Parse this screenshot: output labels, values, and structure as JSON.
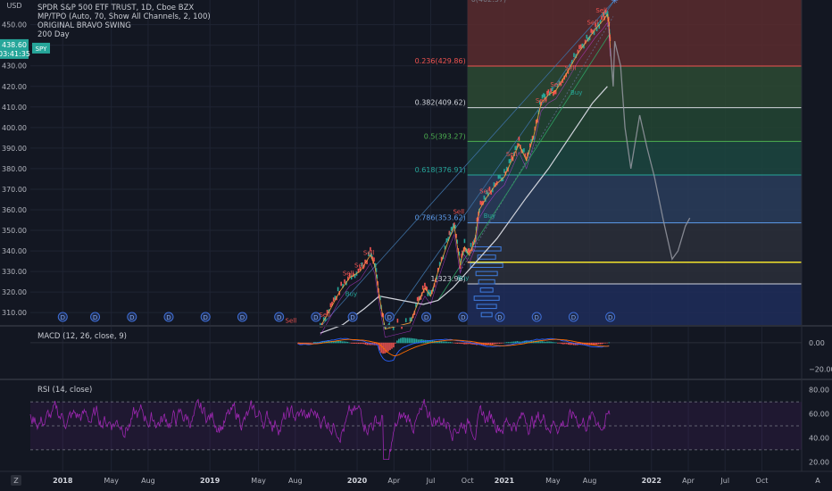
{
  "header": {
    "currency": "USD",
    "title": "SPDR S&P 500 ETF TRUST, 1D, Cboe BZX",
    "indicators": [
      "MP/TPO (Auto, 70, Show All Channels, 2, 100)",
      "ORIGINAL BRAVO SWING",
      "200 Day"
    ]
  },
  "last_price": {
    "price": "438.60",
    "countdown": "03:41:35",
    "symbol": "SPY",
    "value": 438.6
  },
  "colors": {
    "up": "#26a69a",
    "down": "#ef5350",
    "ma": "#d1d4dc",
    "rsi": "#9c27b0",
    "fib_gold": "#f2e22b",
    "background": "#131722"
  },
  "chart_data": [
    {
      "type": "line",
      "name": "price",
      "y_ticks": [
        "450.00",
        "440.00",
        "430.00",
        "420.00",
        "410.00",
        "400.00",
        "390.00",
        "380.00",
        "370.00",
        "360.00",
        "350.00",
        "340.00",
        "330.00",
        "320.00",
        "310.00"
      ],
      "ylim": [
        304,
        462
      ],
      "x_ticks": [
        {
          "label": "2018",
          "t": 2018.0
        },
        {
          "label": "May",
          "t": 2018.33
        },
        {
          "label": "Aug",
          "t": 2018.58
        },
        {
          "label": "2019",
          "t": 2019.0
        },
        {
          "label": "May",
          "t": 2019.33
        },
        {
          "label": "Aug",
          "t": 2019.58
        },
        {
          "label": "2020",
          "t": 2020.0
        },
        {
          "label": "Apr",
          "t": 2020.25
        },
        {
          "label": "Jul",
          "t": 2020.5
        },
        {
          "label": "Oct",
          "t": 2020.75
        },
        {
          "label": "2021",
          "t": 2021.0
        },
        {
          "label": "May",
          "t": 2021.33
        },
        {
          "label": "Aug",
          "t": 2021.58
        },
        {
          "label": "2022",
          "t": 2022.0
        },
        {
          "label": "Apr",
          "t": 2022.25
        },
        {
          "label": "Jul",
          "t": 2022.5
        },
        {
          "label": "Oct",
          "t": 2022.75
        }
      ],
      "price_series": [
        [
          2019.75,
          303
        ],
        [
          2019.82,
          312
        ],
        [
          2019.88,
          320
        ],
        [
          2019.95,
          327
        ],
        [
          2020.02,
          330
        ],
        [
          2020.09,
          338
        ],
        [
          2020.12,
          333
        ],
        [
          2020.15,
          318
        ],
        [
          2020.19,
          302
        ],
        [
          2020.36,
          305
        ],
        [
          2020.42,
          316
        ],
        [
          2020.46,
          322
        ],
        [
          2020.5,
          318
        ],
        [
          2020.55,
          330
        ],
        [
          2020.62,
          345
        ],
        [
          2020.66,
          352
        ],
        [
          2020.7,
          333
        ],
        [
          2020.73,
          342
        ],
        [
          2020.76,
          338
        ],
        [
          2020.8,
          345
        ],
        [
          2020.83,
          360
        ],
        [
          2020.88,
          366
        ],
        [
          2020.94,
          372
        ],
        [
          2021.0,
          376
        ],
        [
          2021.05,
          384
        ],
        [
          2021.1,
          392
        ],
        [
          2021.15,
          384
        ],
        [
          2021.2,
          396
        ],
        [
          2021.25,
          412
        ],
        [
          2021.3,
          416
        ],
        [
          2021.35,
          418
        ],
        [
          2021.42,
          426
        ],
        [
          2021.5,
          436
        ],
        [
          2021.56,
          442
        ],
        [
          2021.62,
          448
        ],
        [
          2021.67,
          452
        ],
        [
          2021.7,
          455
        ],
        [
          2021.71,
          451
        ],
        [
          2021.72,
          438.6
        ]
      ],
      "ma200": [
        [
          2019.75,
          300
        ],
        [
          2019.9,
          304
        ],
        [
          2020.05,
          312
        ],
        [
          2020.15,
          318
        ],
        [
          2020.3,
          316
        ],
        [
          2020.45,
          314
        ],
        [
          2020.55,
          316
        ],
        [
          2020.65,
          322
        ],
        [
          2020.75,
          330
        ],
        [
          2020.85,
          338
        ],
        [
          2020.95,
          346
        ],
        [
          2021.05,
          356
        ],
        [
          2021.15,
          366
        ],
        [
          2021.3,
          380
        ],
        [
          2021.45,
          396
        ],
        [
          2021.6,
          412
        ],
        [
          2021.7,
          420
        ]
      ],
      "projection": [
        [
          2021.72,
          438.6
        ],
        [
          2021.74,
          420
        ],
        [
          2021.75,
          442
        ],
        [
          2021.79,
          430
        ],
        [
          2021.82,
          400
        ],
        [
          2021.86,
          380
        ],
        [
          2021.92,
          406
        ],
        [
          2021.97,
          390
        ],
        [
          2022.02,
          376
        ],
        [
          2022.08,
          355
        ],
        [
          2022.14,
          336
        ],
        [
          2022.18,
          340
        ],
        [
          2022.23,
          352
        ],
        [
          2022.26,
          356
        ]
      ],
      "fibonacci": {
        "top": {
          "label": "0(462.37)",
          "value": 462.37
        },
        "levels": [
          {
            "label": "0.236(429.86)",
            "value": 429.86,
            "color": "#ef5350"
          },
          {
            "label": "0.382(409.62)",
            "value": 409.62,
            "color": "#d1d4dc"
          },
          {
            "label": "0.5(393.27)",
            "value": 393.27,
            "color": "#4caf50"
          },
          {
            "label": "0.618(376.91)",
            "value": 376.91,
            "color": "#26a69a"
          },
          {
            "label": "0.786(353.62)",
            "value": 353.62,
            "color": "#5d9cec"
          },
          {
            "label": "1(323.96)",
            "value": 323.96,
            "color": "#d1d4dc"
          }
        ],
        "gold_line": 334.5,
        "start_t": 2020.75
      },
      "signals": [
        {
          "text": "Sell",
          "t": 2020.08,
          "v": 338
        },
        {
          "text": "Sell",
          "t": 2020.02,
          "v": 332
        },
        {
          "text": "Sell",
          "t": 2019.94,
          "v": 328
        },
        {
          "text": "Buy",
          "t": 2019.96,
          "v": 318
        },
        {
          "text": "Sell",
          "t": 2019.78,
          "v": 308
        },
        {
          "text": "Sell",
          "t": 2019.55,
          "v": 305
        },
        {
          "text": "Sell",
          "t": 2020.69,
          "v": 358
        },
        {
          "text": "Buy",
          "t": 2020.72,
          "v": 326
        },
        {
          "text": "Sell",
          "t": 2020.87,
          "v": 368
        },
        {
          "text": "Sell",
          "t": 2021.05,
          "v": 386
        },
        {
          "text": "Sell",
          "t": 2021.25,
          "v": 412
        },
        {
          "text": "Sell",
          "t": 2021.35,
          "v": 420
        },
        {
          "text": "Sell",
          "t": 2021.45,
          "v": 428
        },
        {
          "text": "Buy",
          "t": 2021.49,
          "v": 416
        },
        {
          "text": "Sell",
          "t": 2021.66,
          "v": 456
        },
        {
          "text": "Sell",
          "t": 2021.6,
          "v": 450
        },
        {
          "text": "Buy",
          "t": 2020.9,
          "v": 356
        }
      ],
      "dividends": [
        2018.0,
        2018.22,
        2018.47,
        2018.72,
        2018.97,
        2019.22,
        2019.47,
        2019.72,
        2019.97,
        2020.22,
        2020.47,
        2020.72,
        2020.97,
        2021.22,
        2021.47,
        2021.72
      ],
      "dividend_marker": "D"
    },
    {
      "type": "line",
      "name": "MACD",
      "title": "MACD (12, 26, close, 9)",
      "y_ticks": [
        "0.00",
        "−20.00"
      ],
      "ylim": [
        -27,
        12
      ]
    },
    {
      "type": "line",
      "name": "RSI",
      "title": "RSI (14, close)",
      "y_ticks": [
        "80.00",
        "60.00",
        "40.00",
        "20.00"
      ],
      "ylim": [
        12,
        88
      ],
      "bands": [
        70,
        50,
        30
      ]
    }
  ],
  "footer": {
    "tz_icon": "Z",
    "mode": "A"
  }
}
